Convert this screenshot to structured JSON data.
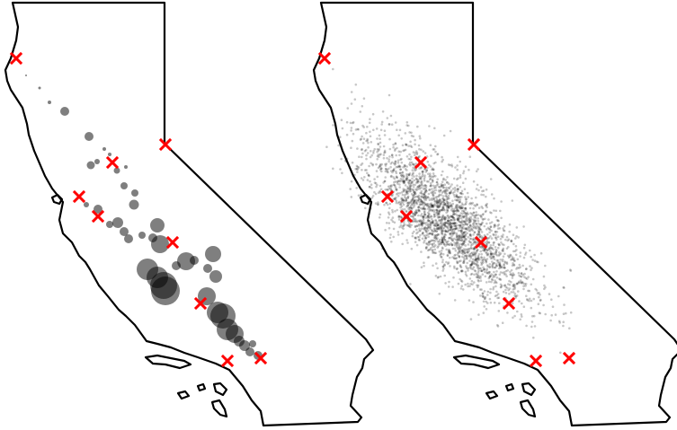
{
  "figure": {
    "panels": [
      {
        "id": "left",
        "kind": "bubble-map"
      },
      {
        "id": "right",
        "kind": "density-map"
      }
    ],
    "marker_color": "#ff0000",
    "outline_color": "#000000",
    "point_color": "#000000",
    "marker_symbol": "x"
  }
}
